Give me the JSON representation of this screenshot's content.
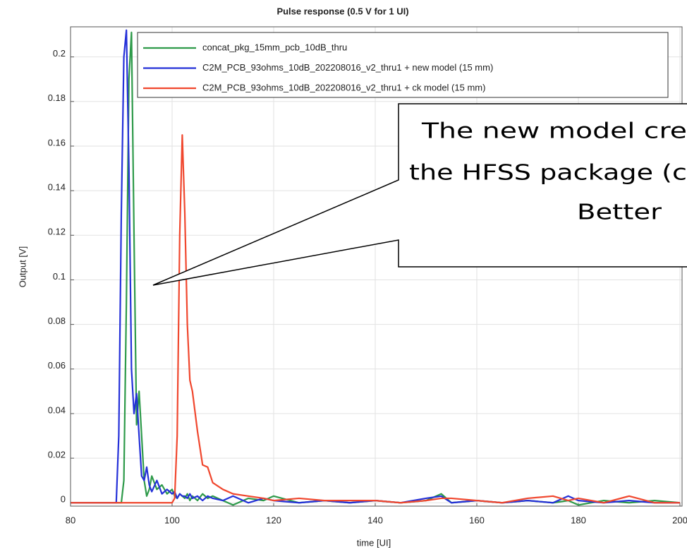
{
  "chart_data": {
    "type": "line",
    "title": "Pulse response (0.5 V for 1 UI)",
    "x_label": "time [UI]",
    "y_label": "Output [V]",
    "x": [
      80,
      88,
      89,
      89.5,
      90,
      90.5,
      91,
      91.5,
      92,
      92.5,
      93,
      93.5,
      94,
      94.5,
      95,
      95.5,
      96,
      97,
      98,
      99,
      100,
      100.5,
      101,
      101.5,
      102,
      102.5,
      103,
      103.5,
      104,
      105,
      106,
      107,
      108,
      110,
      112,
      115,
      118,
      120,
      125,
      130,
      135,
      140,
      145,
      150,
      153,
      155,
      160,
      165,
      170,
      175,
      178,
      180,
      185,
      190,
      195,
      200
    ],
    "series": [
      {
        "name": "concat_pkg_15mm_pcb_10dB_thru",
        "color": "#2e9a4a",
        "values": [
          0,
          0,
          0,
          0,
          0,
          0.01,
          0.09,
          0.19,
          0.211,
          0.12,
          0.035,
          0.05,
          0.03,
          0.01,
          0.003,
          0.006,
          0.012,
          0.006,
          0.008,
          0.004,
          0.006,
          0.003,
          0.002,
          0.004,
          0.003,
          0.002,
          0.004,
          0.001,
          0.003,
          0.001,
          0.004,
          0.002,
          0.003,
          0.001,
          -0.001,
          0.002,
          0.001,
          0.003,
          0,
          0.001,
          0,
          0.001,
          0,
          0.001,
          0.004,
          0,
          0.001,
          0,
          0.001,
          0,
          0.001,
          -0.001,
          0.001,
          0,
          0.001,
          0
        ]
      },
      {
        "name": "C2M_PCB_93ohms_10dB_202208016_v2_thru1 + new model (15 mm)",
        "color": "#2430d8",
        "values": [
          0,
          0,
          0,
          0.03,
          0.13,
          0.2,
          0.212,
          0.15,
          0.06,
          0.04,
          0.049,
          0.03,
          0.012,
          0.01,
          0.016,
          0.008,
          0.005,
          0.01,
          0.004,
          0.006,
          0.004,
          0.005,
          0.002,
          0.004,
          0.003,
          0.003,
          0.002,
          0.004,
          0.002,
          0.003,
          0.001,
          0.003,
          0.002,
          0.001,
          0.003,
          0,
          0.002,
          0.001,
          0,
          0.001,
          0,
          0.001,
          0,
          0.002,
          0.003,
          0,
          0.001,
          0,
          0.001,
          0,
          0.003,
          0.001,
          0,
          0.001,
          0,
          0
        ]
      },
      {
        "name": "C2M_PCB_93ohms_10dB_202208016_v2_thru1 + ck model (15 mm)",
        "color": "#f0472e",
        "values": [
          0,
          0,
          0,
          0,
          0,
          0,
          0,
          0,
          0,
          0,
          0,
          0,
          0,
          0,
          0,
          0,
          0,
          0,
          0,
          0,
          0,
          0.002,
          0.03,
          0.12,
          0.165,
          0.13,
          0.08,
          0.055,
          0.05,
          0.032,
          0.017,
          0.016,
          0.009,
          0.006,
          0.004,
          0.003,
          0.002,
          0.001,
          0.002,
          0.001,
          0.001,
          0.001,
          0,
          0.001,
          0.002,
          0.002,
          0.001,
          0,
          0.002,
          0.003,
          0.001,
          0.002,
          0,
          0.003,
          0,
          0
        ]
      }
    ],
    "xlim": [
      80,
      200
    ],
    "xticks": [
      80,
      100,
      120,
      140,
      160,
      180,
      200
    ],
    "ylim": [
      -0.0015,
      0.2135
    ],
    "yticks": [
      0,
      0.02,
      0.04,
      0.06,
      0.08,
      0.1,
      0.12,
      0.14,
      0.16,
      0.18,
      0.2
    ],
    "grid": true,
    "legend": "top",
    "annotation": [
      "The new model cre",
      "the HFSS package (c",
      "Better"
    ]
  }
}
